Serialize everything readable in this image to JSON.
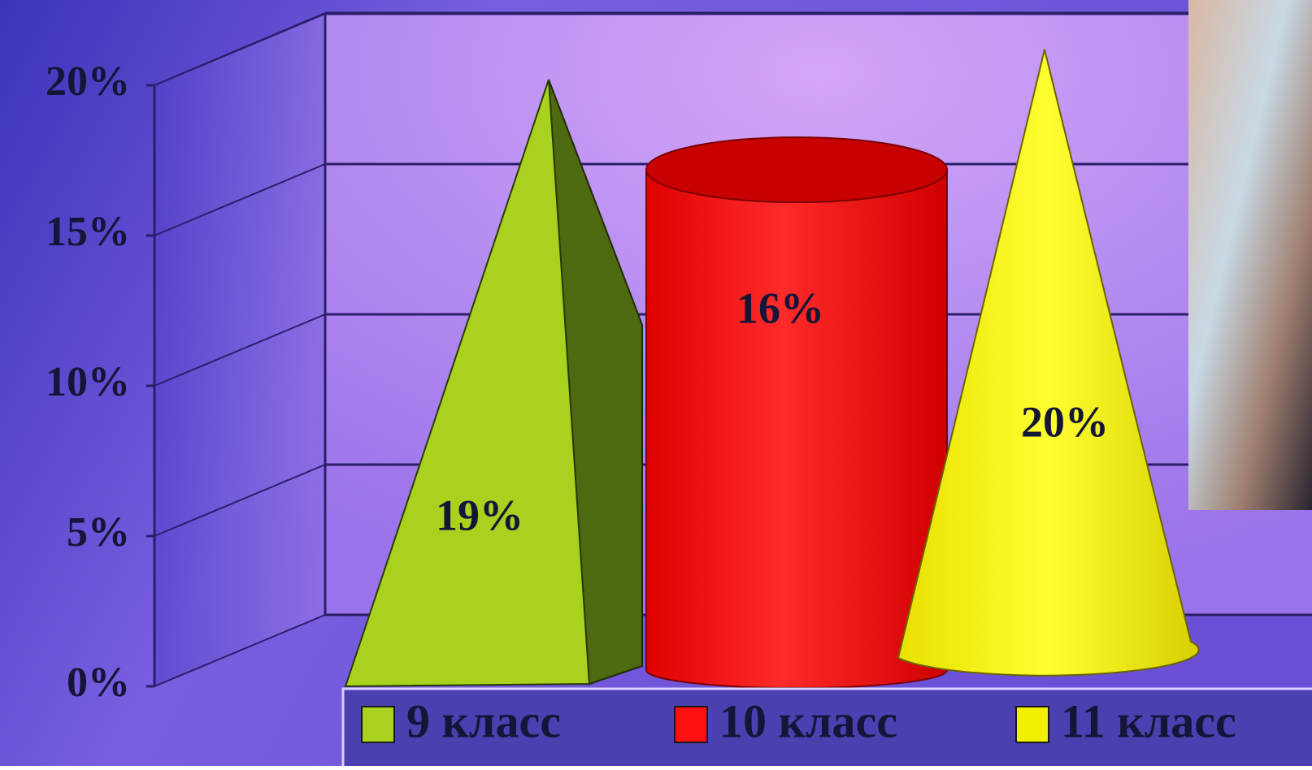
{
  "chart_data": {
    "type": "bar3d",
    "series": [
      {
        "name": "9 класс",
        "color": "#a8d21e",
        "shape": "pyramid",
        "values": [
          19
        ],
        "value_labels": [
          "19%"
        ]
      },
      {
        "name": "10 класс",
        "color": "#ff1010",
        "shape": "cylinder",
        "values": [
          16
        ],
        "value_labels": [
          "16%"
        ]
      },
      {
        "name": "11 класс",
        "color": "#f2f000",
        "shape": "cone",
        "values": [
          20
        ],
        "value_labels": [
          "20%"
        ]
      }
    ],
    "ylim": [
      0,
      20
    ],
    "yticks": [
      {
        "value": 0,
        "label": "0%"
      },
      {
        "value": 5,
        "label": "5%"
      },
      {
        "value": 10,
        "label": "10%"
      },
      {
        "value": 15,
        "label": "15%"
      },
      {
        "value": 20,
        "label": "20%"
      }
    ],
    "grid": true,
    "legend": "bottom"
  }
}
